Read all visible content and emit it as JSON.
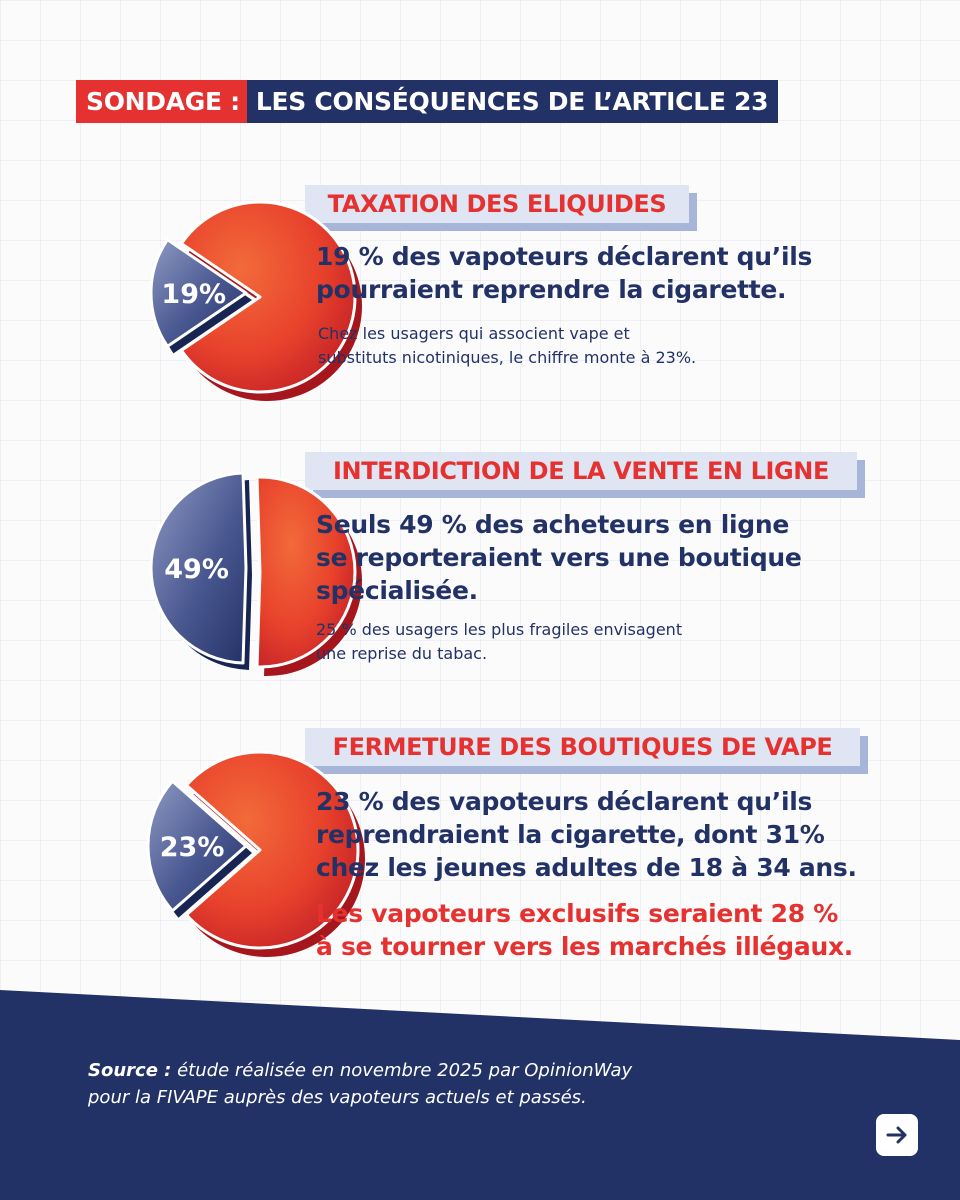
{
  "header": {
    "label_red": "SONDAGE :",
    "label_blue": "LES CONSÉQUENCES DE L’ARTICLE 23"
  },
  "colors": {
    "red": "#e5312f",
    "navy": "#233266",
    "tag_bg": "#dfe5f3",
    "tag_shadow": "#a7b6d8"
  },
  "chart_data": [
    {
      "type": "pie",
      "title": "TAXATION DES ELIQUIDES",
      "slices": [
        {
          "label": "19%",
          "value": 19,
          "color": "#233266"
        },
        {
          "label": "",
          "value": 81,
          "color": "#e5312f"
        }
      ]
    },
    {
      "type": "pie",
      "title": "INTERDICTION DE LA VENTE EN LIGNE",
      "slices": [
        {
          "label": "49%",
          "value": 49,
          "color": "#233266"
        },
        {
          "label": "",
          "value": 51,
          "color": "#e5312f"
        }
      ]
    },
    {
      "type": "pie",
      "title": "FERMETURE DES BOUTIQUES DE VAPE",
      "slices": [
        {
          "label": "23%",
          "value": 23,
          "color": "#233266"
        },
        {
          "label": "",
          "value": 77,
          "color": "#e5312f"
        }
      ]
    }
  ],
  "sections": [
    {
      "headline": [
        "19 % des vapoteurs déclarent qu’ils",
        "pourraient reprendre la cigarette."
      ],
      "sub": [
        "Chez les usagers qui associent vape et",
        "substituts nicotiniques, le chiffre monte à 23%."
      ]
    },
    {
      "headline": [
        "Seuls 49 % des acheteurs en ligne",
        "se reporteraient vers une boutique",
        "spécialisée."
      ],
      "sub": [
        "25 % des usagers les plus fragiles envisagent",
        "une reprise du tabac."
      ]
    },
    {
      "headline": [
        "23 % des vapoteurs déclarent qu’ils",
        "reprendraient la cigarette, dont 31%",
        "chez les jeunes adultes de 18 à 34 ans."
      ],
      "alert": [
        "Les vapoteurs exclusifs seraient 28 %",
        "à se tourner vers les marchés illégaux."
      ]
    }
  ],
  "footer": {
    "source_label": "Source :",
    "source_line1": "étude réalisée en novembre 2025 par OpinionWay",
    "source_line2": "pour la FIVAPE  auprès des vapoteurs actuels et passés.",
    "next_icon": "arrow-right-icon"
  }
}
